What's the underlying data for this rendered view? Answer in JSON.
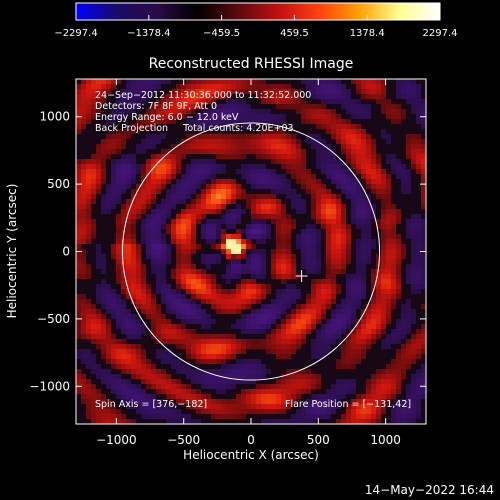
{
  "colors": {
    "background": "#000000",
    "foreground": "#ffffff",
    "colorbar_stops": [
      "#0000ff",
      "#1a0a6a",
      "#2a0b48",
      "#000000",
      "#5a0a10",
      "#c01010",
      "#ff4010",
      "#ffa000",
      "#ffff90",
      "#ffffff"
    ]
  },
  "chart_data": {
    "type": "heatmap",
    "title": "Reconstructed RHESSI Image",
    "xlabel": "Heliocentric X (arcsec)",
    "ylabel": "Heliocentric Y (arcsec)",
    "xlim": [
      -1300,
      1300
    ],
    "ylim": [
      -1280,
      1280
    ],
    "xticks": [
      -1000,
      -500,
      0,
      500,
      1000
    ],
    "yticks": [
      -1000,
      -500,
      0,
      500,
      1000
    ],
    "xtick_labels": [
      "−1000",
      "−500",
      "0",
      "500",
      "1000"
    ],
    "ytick_labels": [
      "−1000",
      "−500",
      "0",
      "500",
      "1000"
    ],
    "colorbar": {
      "min": -2297.4,
      "max": 2297.4,
      "tick_values": [
        -2297.4,
        -1378.4,
        -459.5,
        459.5,
        1378.4,
        2297.4
      ],
      "tick_labels": [
        "−2297.4",
        "−1378.4",
        "−459.5",
        "459.5",
        "1378.4",
        "2297.4"
      ]
    },
    "annotations": [
      "24−Sep−2012 11:30:36.000 to 11:32:52.000",
      "Detectors: 7F 8F 9F, Att 0",
      "Energy Range: 6.0 − 12.0 keV",
      "Back Projection     Total counts: 4.20E+03"
    ],
    "spin_axis_label": "Spin Axis = [376,−182]",
    "flare_position_label": "Flare Position = [−131,42]",
    "spin_axis": [
      376,
      -182
    ],
    "flare_position": [
      -131,
      42
    ],
    "solar_limb_radius": 955
  },
  "footer": {
    "date": "14−May−2022 16:44"
  }
}
